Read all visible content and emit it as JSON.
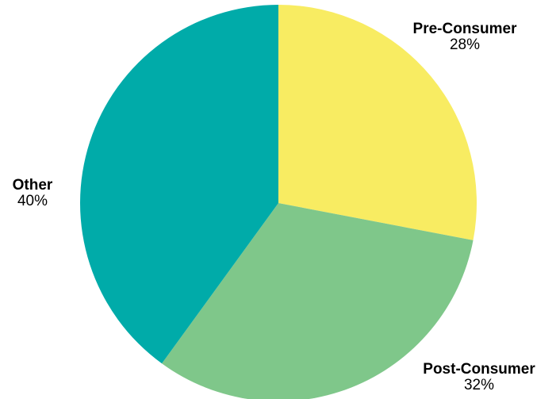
{
  "chart_data": {
    "type": "pie",
    "title": "",
    "slices": [
      {
        "label": "Pre-Consumer",
        "value": 28,
        "value_label": "28%",
        "color": "#F8EC62"
      },
      {
        "label": "Post-Consumer",
        "value": 32,
        "value_label": "32%",
        "color": "#7FC78A"
      },
      {
        "label": "Other",
        "value": 40,
        "value_label": "40%",
        "color": "#00ABA9"
      }
    ],
    "start_angle": "12 o'clock",
    "direction": "clockwise",
    "legend": "none",
    "labels": "outside slices"
  }
}
